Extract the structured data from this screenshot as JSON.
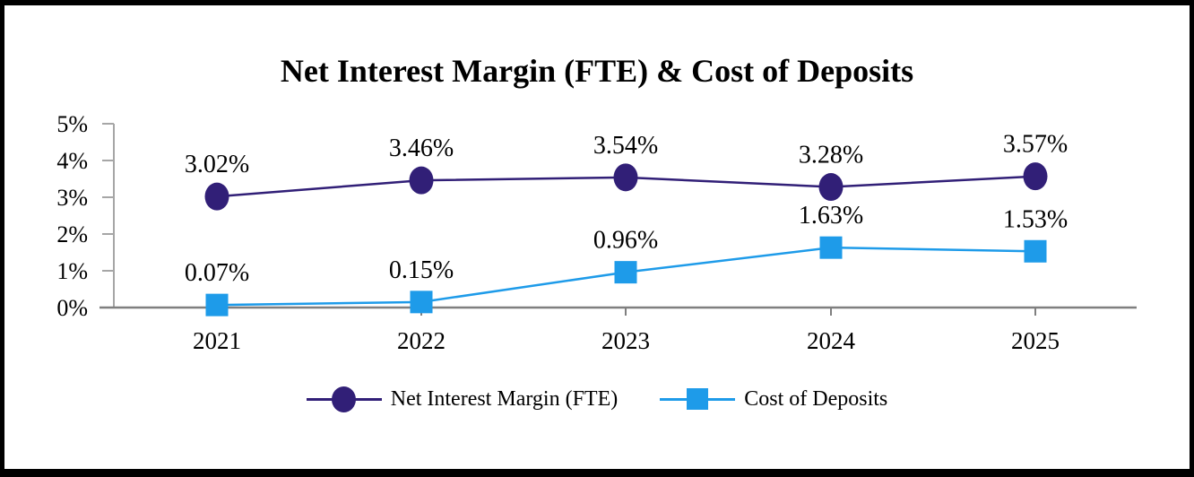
{
  "chart_data": {
    "type": "line",
    "title": "Net Interest Margin (FTE) & Cost of Deposits",
    "categories": [
      "2021",
      "2022",
      "2023",
      "2024",
      "2025"
    ],
    "series": [
      {
        "name": "Net Interest Margin (FTE)",
        "values": [
          3.02,
          3.46,
          3.54,
          3.28,
          3.57
        ],
        "labels": [
          "3.02%",
          "3.46%",
          "3.54%",
          "3.28%",
          "3.57%"
        ],
        "color": "#311F77",
        "marker": "circle"
      },
      {
        "name": "Cost of Deposits",
        "values": [
          0.07,
          0.15,
          0.96,
          1.63,
          1.53
        ],
        "labels": [
          "0.07%",
          "0.15%",
          "0.96%",
          "1.63%",
          "1.53%"
        ],
        "color": "#1E9BE9",
        "marker": "square"
      }
    ],
    "y_axis": {
      "ticks": [
        "0%",
        "1%",
        "2%",
        "3%",
        "4%",
        "5%"
      ],
      "min": 0,
      "max": 5
    },
    "x_axis_color": "#7F7F7F",
    "y_axis_color": "#A6A6A6",
    "grid": false,
    "legend_position": "bottom"
  }
}
